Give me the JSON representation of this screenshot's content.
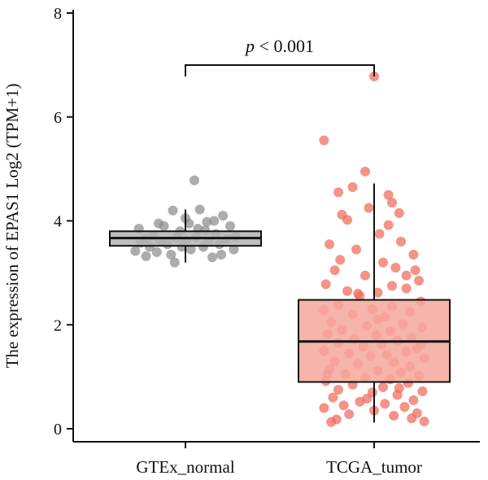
{
  "chart_data": {
    "type": "box",
    "title": "",
    "xlabel": "",
    "ylabel": "The expression of EPAS1 Log2 (TPM+1)",
    "ylim": [
      -0.3,
      8
    ],
    "yticks": [
      0,
      2,
      4,
      6,
      8
    ],
    "grid": false,
    "legend": "none",
    "categories": [
      "GTEx_normal",
      "TCGA_tumor"
    ],
    "annotation": {
      "p_symbol": "p",
      "p_rest": " < 0.001",
      "between": [
        "GTEx_normal",
        "TCGA_tumor"
      ]
    },
    "series": [
      {
        "category": "GTEx_normal",
        "color": "#8c8c8c",
        "box_fill": "#b3b3b3",
        "box": {
          "whisker_low": 3.2,
          "q1": 3.52,
          "median": 3.67,
          "q3": 3.8,
          "whisker_high": 4.22
        },
        "points": [
          [
            -0.28,
            3.42
          ],
          [
            -0.25,
            3.58
          ],
          [
            -0.22,
            3.65
          ],
          [
            -0.2,
            3.5
          ],
          [
            -0.18,
            3.72
          ],
          [
            -0.16,
            3.4
          ],
          [
            -0.14,
            3.6
          ],
          [
            -0.12,
            3.9
          ],
          [
            -0.1,
            3.55
          ],
          [
            -0.08,
            3.35
          ],
          [
            -0.06,
            3.2
          ],
          [
            -0.05,
            3.68
          ],
          [
            -0.03,
            3.8
          ],
          [
            -0.02,
            3.5
          ],
          [
            0.0,
            3.62
          ],
          [
            0.02,
            3.95
          ],
          [
            0.03,
            3.45
          ],
          [
            0.05,
            4.78
          ],
          [
            0.06,
            3.7
          ],
          [
            0.08,
            4.22
          ],
          [
            0.1,
            3.5
          ],
          [
            0.11,
            3.82
          ],
          [
            0.13,
            3.6
          ],
          [
            0.15,
            3.3
          ],
          [
            0.17,
            3.75
          ],
          [
            0.19,
            3.55
          ],
          [
            0.21,
            4.1
          ],
          [
            0.23,
            3.65
          ],
          [
            0.25,
            3.9
          ],
          [
            0.27,
            3.45
          ],
          [
            0.28,
            3.7
          ],
          [
            -0.26,
            3.85
          ],
          [
            -0.15,
            3.95
          ],
          [
            -0.07,
            4.2
          ],
          [
            0.0,
            4.05
          ],
          [
            0.12,
            3.98
          ],
          [
            0.2,
            3.35
          ],
          [
            -0.22,
            3.32
          ],
          [
            0.07,
            3.85
          ],
          [
            0.16,
            4.0
          ]
        ]
      },
      {
        "category": "TCGA_tumor",
        "color": "#f06a5a",
        "box_fill": "#f4a79c",
        "box": {
          "whisker_low": 0.12,
          "q1": 0.9,
          "median": 1.68,
          "q3": 2.48,
          "whisker_high": 4.72
        },
        "points": [
          [
            0.0,
            6.78
          ],
          [
            -0.28,
            5.55
          ],
          [
            -0.05,
            4.95
          ],
          [
            -0.12,
            4.65
          ],
          [
            -0.2,
            4.55
          ],
          [
            0.08,
            4.5
          ],
          [
            0.1,
            4.35
          ],
          [
            -0.18,
            4.12
          ],
          [
            0.14,
            4.15
          ],
          [
            -0.15,
            4.02
          ],
          [
            0.03,
            3.75
          ],
          [
            0.15,
            3.6
          ],
          [
            -0.25,
            3.55
          ],
          [
            0.22,
            3.35
          ],
          [
            -0.1,
            3.45
          ],
          [
            0.05,
            3.2
          ],
          [
            -0.22,
            3.05
          ],
          [
            0.12,
            3.1
          ],
          [
            -0.05,
            2.95
          ],
          [
            0.25,
            2.85
          ],
          [
            -0.27,
            2.78
          ],
          [
            0.18,
            2.7
          ],
          [
            -0.15,
            2.65
          ],
          [
            0.02,
            2.62
          ],
          [
            -0.08,
            2.55
          ],
          [
            0.26,
            2.45
          ],
          [
            -0.2,
            2.38
          ],
          [
            0.1,
            2.35
          ],
          [
            -0.01,
            2.3
          ],
          [
            -0.28,
            2.28
          ],
          [
            0.2,
            2.25
          ],
          [
            -0.12,
            2.2
          ],
          [
            0.06,
            2.15
          ],
          [
            -0.24,
            2.05
          ],
          [
            0.16,
            2.02
          ],
          [
            -0.04,
            1.98
          ],
          [
            0.27,
            1.95
          ],
          [
            -0.18,
            1.9
          ],
          [
            0.09,
            1.88
          ],
          [
            -0.26,
            1.82
          ],
          [
            0.01,
            1.8
          ],
          [
            0.21,
            1.75
          ],
          [
            -0.11,
            1.72
          ],
          [
            0.13,
            1.7
          ],
          [
            -0.2,
            1.65
          ],
          [
            0.04,
            1.62
          ],
          [
            -0.06,
            1.58
          ],
          [
            0.24,
            1.55
          ],
          [
            -0.28,
            1.5
          ],
          [
            0.18,
            1.48
          ],
          [
            -0.14,
            1.45
          ],
          [
            0.07,
            1.42
          ],
          [
            -0.02,
            1.4
          ],
          [
            0.28,
            1.35
          ],
          [
            -0.22,
            1.3
          ],
          [
            0.11,
            1.28
          ],
          [
            -0.09,
            1.25
          ],
          [
            0.2,
            1.2
          ],
          [
            -0.25,
            1.15
          ],
          [
            0.02,
            1.12
          ],
          [
            0.15,
            1.08
          ],
          [
            -0.16,
            1.05
          ],
          [
            0.25,
            1.02
          ],
          [
            -0.05,
            0.98
          ],
          [
            0.09,
            0.95
          ],
          [
            -0.27,
            0.92
          ],
          [
            0.19,
            0.88
          ],
          [
            -0.12,
            0.85
          ],
          [
            0.05,
            0.8
          ],
          [
            -0.2,
            0.75
          ],
          [
            0.27,
            0.72
          ],
          [
            -0.01,
            0.7
          ],
          [
            0.13,
            0.65
          ],
          [
            -0.23,
            0.6
          ],
          [
            0.22,
            0.55
          ],
          [
            -0.08,
            0.52
          ],
          [
            0.06,
            0.48
          ],
          [
            -0.17,
            0.45
          ],
          [
            0.17,
            0.42
          ],
          [
            -0.28,
            0.4
          ],
          [
            0.0,
            0.35
          ],
          [
            0.24,
            0.3
          ],
          [
            -0.14,
            0.28
          ],
          [
            0.11,
            0.25
          ],
          [
            0.21,
            0.2
          ],
          [
            -0.21,
            0.18
          ],
          [
            0.28,
            0.14
          ],
          [
            -0.24,
            0.13
          ],
          [
            0.08,
            3.92
          ],
          [
            -0.03,
            4.25
          ],
          [
            0.23,
            3.05
          ],
          [
            -0.19,
            3.25
          ],
          [
            0.1,
            2.75
          ],
          [
            -0.09,
            2.6
          ],
          [
            0.02,
            2.1
          ],
          [
            0.26,
            1.62
          ],
          [
            -0.26,
            1.05
          ],
          [
            0.14,
            0.78
          ],
          [
            -0.04,
            0.58
          ],
          [
            0.18,
            2.95
          ]
        ]
      }
    ]
  }
}
